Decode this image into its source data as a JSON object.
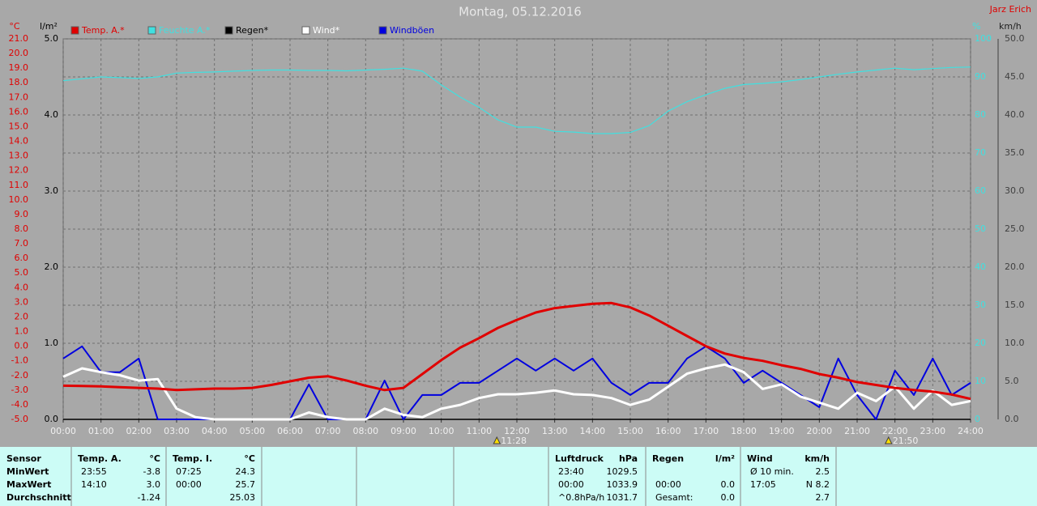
{
  "chart_data": {
    "type": "line",
    "title": "Montag, 05.12.2016",
    "author": "Jarz Erich",
    "y_label": "°C",
    "y2_label": "km/h",
    "y3_label": "l/m²",
    "y4_label": "%",
    "x": [
      0,
      0.5,
      1,
      1.5,
      2,
      2.5,
      3,
      3.5,
      4,
      4.5,
      5,
      5.5,
      6,
      6.5,
      7,
      7.5,
      8,
      8.5,
      9,
      9.5,
      10,
      10.5,
      11,
      11.5,
      12,
      12.5,
      13,
      13.5,
      14,
      14.5,
      15,
      15.5,
      16,
      16.5,
      17,
      17.5,
      18,
      18.5,
      19,
      19.5,
      20,
      20.5,
      21,
      21.5,
      22,
      22.5,
      23,
      23.5,
      24
    ],
    "xlim": [
      0,
      24
    ],
    "xticks": [
      {
        "value": 0,
        "label": "00:00"
      },
      {
        "value": 1,
        "label": "01:00"
      },
      {
        "value": 2,
        "label": "02:00"
      },
      {
        "value": 3,
        "label": "03:00"
      },
      {
        "value": 4,
        "label": "04:00"
      },
      {
        "value": 5,
        "label": "05:00"
      },
      {
        "value": 6,
        "label": "06:00"
      },
      {
        "value": 7,
        "label": "07:00"
      },
      {
        "value": 8,
        "label": "08:00"
      },
      {
        "value": 9,
        "label": "09:00"
      },
      {
        "value": 10,
        "label": "10:00"
      },
      {
        "value": 11,
        "label": "11:00"
      },
      {
        "value": 12,
        "label": "12:00"
      },
      {
        "value": 13,
        "label": "13:00"
      },
      {
        "value": 14,
        "label": "14:00"
      },
      {
        "value": 15,
        "label": "15:00"
      },
      {
        "value": 16,
        "label": "16:00"
      },
      {
        "value": 17,
        "label": "17:00"
      },
      {
        "value": 18,
        "label": "18:00"
      },
      {
        "value": 19,
        "label": "19:00"
      },
      {
        "value": 20,
        "label": "20:00"
      },
      {
        "value": 21,
        "label": "21:00"
      },
      {
        "value": 22,
        "label": "22:00"
      },
      {
        "value": 23,
        "label": "23:00"
      },
      {
        "value": 24,
        "label": "24:00"
      }
    ],
    "ylim": [
      -5,
      21
    ],
    "yticks": [
      {
        "value": -5,
        "label": "-5.0"
      },
      {
        "value": -4,
        "label": "-4.0"
      },
      {
        "value": -3,
        "label": "-3.0"
      },
      {
        "value": -2,
        "label": "-2.0"
      },
      {
        "value": -1,
        "label": "-1.0"
      },
      {
        "value": 0,
        "label": "0.0"
      },
      {
        "value": 1,
        "label": "1.0"
      },
      {
        "value": 2,
        "label": "2.0"
      },
      {
        "value": 3,
        "label": "3.0"
      },
      {
        "value": 4,
        "label": "4.0"
      },
      {
        "value": 5,
        "label": "5.0"
      },
      {
        "value": 6,
        "label": "6.0"
      },
      {
        "value": 7,
        "label": "7.0"
      },
      {
        "value": 8,
        "label": "8.0"
      },
      {
        "value": 9,
        "label": "9.0"
      },
      {
        "value": 10,
        "label": "10.0"
      },
      {
        "value": 11,
        "label": "11.0"
      },
      {
        "value": 12,
        "label": "12.0"
      },
      {
        "value": 13,
        "label": "13.0"
      },
      {
        "value": 14,
        "label": "14.0"
      },
      {
        "value": 15,
        "label": "15.0"
      },
      {
        "value": 16,
        "label": "16.0"
      },
      {
        "value": 17,
        "label": "17.0"
      },
      {
        "value": 18,
        "label": "18.0"
      },
      {
        "value": 19,
        "label": "19.0"
      },
      {
        "value": 20,
        "label": "20.0"
      },
      {
        "value": 21,
        "label": "21.0"
      }
    ],
    "y2lim": [
      0,
      50
    ],
    "y2ticks": [
      {
        "value": 0,
        "label": "0.0"
      },
      {
        "value": 5,
        "label": "5.0"
      },
      {
        "value": 10,
        "label": "10.0"
      },
      {
        "value": 15,
        "label": "15.0"
      },
      {
        "value": 20,
        "label": "20.0"
      },
      {
        "value": 25,
        "label": "25.0"
      },
      {
        "value": 30,
        "label": "30.0"
      },
      {
        "value": 35,
        "label": "35.0"
      },
      {
        "value": 40,
        "label": "40.0"
      },
      {
        "value": 45,
        "label": "45.0"
      },
      {
        "value": 50,
        "label": "50.0"
      }
    ],
    "y3lim": [
      0,
      5
    ],
    "y3ticks": [
      {
        "value": 0,
        "label": "0.0"
      },
      {
        "value": 1,
        "label": "1.0"
      },
      {
        "value": 2,
        "label": "2.0"
      },
      {
        "value": 3,
        "label": "3.0"
      },
      {
        "value": 4,
        "label": "4.0"
      },
      {
        "value": 5,
        "label": "5.0"
      }
    ],
    "y4lim": [
      0,
      100
    ],
    "y4ticks": [
      0,
      10,
      20,
      30,
      40,
      50,
      60,
      70,
      80,
      90,
      100
    ],
    "grid": true,
    "annotations": [
      {
        "x": 11.47,
        "label": "11:28"
      },
      {
        "x": 21.83,
        "label": "21:50"
      }
    ],
    "series": [
      {
        "name": "Regen*",
        "color": "#000000",
        "axis": "y3",
        "values": [
          0,
          0,
          0,
          0,
          0,
          0,
          0,
          0,
          0,
          0,
          0,
          0,
          0,
          0,
          0,
          0,
          0,
          0,
          0,
          0,
          0,
          0,
          0,
          0,
          0,
          0,
          0,
          0,
          0,
          0,
          0,
          0,
          0,
          0,
          0,
          0,
          0,
          0,
          0,
          0,
          0,
          0,
          0,
          0,
          0,
          0,
          0,
          0,
          0
        ]
      },
      {
        "name": "Feuchte A.*",
        "color": "#40e0e0",
        "axis": "y4",
        "values": [
          89,
          89.5,
          90,
          89.8,
          89.6,
          90,
          91,
          91.2,
          91.3,
          91.5,
          91.7,
          91.8,
          91.8,
          91.7,
          91.7,
          91.6,
          91.8,
          92,
          92.3,
          91.5,
          87.9,
          84.7,
          82,
          78.7,
          76.8,
          76.8,
          75.7,
          75.5,
          75.1,
          75.1,
          75.4,
          77.2,
          81,
          83.5,
          85.3,
          87,
          88,
          88.3,
          88.7,
          89.3,
          90,
          90.7,
          91.3,
          91.8,
          92.3,
          91.9,
          92.2,
          92.5,
          92.6
        ]
      },
      {
        "name": "Windböen",
        "color": "#0000e0",
        "axis": "y2",
        "values": [
          8.0,
          9.6,
          6.2,
          6.2,
          8.0,
          0,
          0,
          0,
          0,
          0,
          0,
          0,
          0,
          4.6,
          0,
          0,
          0,
          5.1,
          0,
          3.2,
          3.2,
          4.8,
          4.8,
          6.4,
          8.0,
          6.4,
          8.0,
          6.4,
          8.0,
          4.8,
          3.2,
          4.8,
          4.8,
          8.0,
          9.6,
          8.0,
          4.8,
          6.4,
          4.8,
          3.2,
          1.6,
          8.0,
          3.2,
          0,
          6.4,
          3.2,
          8.0,
          3.2,
          4.8
        ]
      },
      {
        "name": "Wind*",
        "color": "#ffffff",
        "axis": "y2",
        "values": [
          5.6,
          6.7,
          6.2,
          5.8,
          5.1,
          5.3,
          1.4,
          0.3,
          0,
          0,
          0,
          0,
          0,
          0.9,
          0.3,
          0,
          0,
          1.4,
          0.6,
          0.3,
          1.4,
          1.9,
          2.8,
          3.3,
          3.3,
          3.5,
          3.8,
          3.3,
          3.2,
          2.8,
          1.9,
          2.6,
          4.3,
          6.0,
          6.7,
          7.2,
          6.2,
          4.0,
          4.6,
          3.0,
          2.2,
          1.4,
          3.5,
          2.4,
          4.3,
          1.4,
          3.8,
          1.9,
          2.4
        ]
      },
      {
        "name": "Temp. A.*",
        "color": "#e00000",
        "values": [
          -2.7,
          -2.72,
          -2.75,
          -2.8,
          -2.85,
          -2.9,
          -3.0,
          -2.95,
          -2.9,
          -2.9,
          -2.85,
          -2.65,
          -2.4,
          -2.15,
          -2.05,
          -2.35,
          -2.7,
          -3.0,
          -2.85,
          -1.9,
          -0.95,
          -0.1,
          0.55,
          1.25,
          1.8,
          2.3,
          2.6,
          2.75,
          2.9,
          2.95,
          2.65,
          2.1,
          1.4,
          0.7,
          0.0,
          -0.5,
          -0.8,
          -1.0,
          -1.3,
          -1.55,
          -1.9,
          -2.15,
          -2.45,
          -2.65,
          -2.85,
          -3.0,
          -3.1,
          -3.3,
          -3.6
        ]
      }
    ]
  },
  "table": {
    "panels": [
      {
        "header": [
          "Sensor"
        ],
        "rows": [
          [
            "MinWert"
          ],
          [
            "MaxWert"
          ],
          [
            "Durchschnitt"
          ]
        ]
      },
      {
        "header": [
          "Temp. A.",
          "°C"
        ],
        "rows": [
          [
            "23:55",
            "-3.8"
          ],
          [
            "14:10",
            "3.0"
          ],
          [
            null,
            "-1.24"
          ]
        ]
      },
      {
        "header": [
          "Temp. I.",
          "°C"
        ],
        "rows": [
          [
            "07:25",
            "24.3"
          ],
          [
            "00:00",
            "25.7"
          ],
          [
            null,
            "25.03"
          ]
        ]
      },
      {
        "header": [
          null,
          null
        ],
        "rows": []
      },
      {
        "header": [
          null,
          null
        ],
        "rows": []
      },
      {
        "header": [
          null,
          null
        ],
        "rows": []
      },
      {
        "header": [
          "Luftdruck",
          "hPa"
        ],
        "rows": [
          [
            "23:40",
            "1029.5"
          ],
          [
            "00:00",
            "1033.9"
          ],
          [
            "^0.8hPa/h",
            "1031.7"
          ]
        ]
      },
      {
        "header": [
          "Regen",
          "l/m²"
        ],
        "rows": [
          [
            null,
            null
          ],
          [
            "00:00",
            "0.0"
          ],
          [
            "Gesamt:",
            "0.0"
          ]
        ]
      },
      {
        "header": [
          "Wind",
          "km/h"
        ],
        "rows": [
          [
            "Ø 10 min.",
            "2.5"
          ],
          [
            "17:05",
            "N 8.2"
          ],
          [
            null,
            "2.7"
          ]
        ]
      }
    ]
  }
}
